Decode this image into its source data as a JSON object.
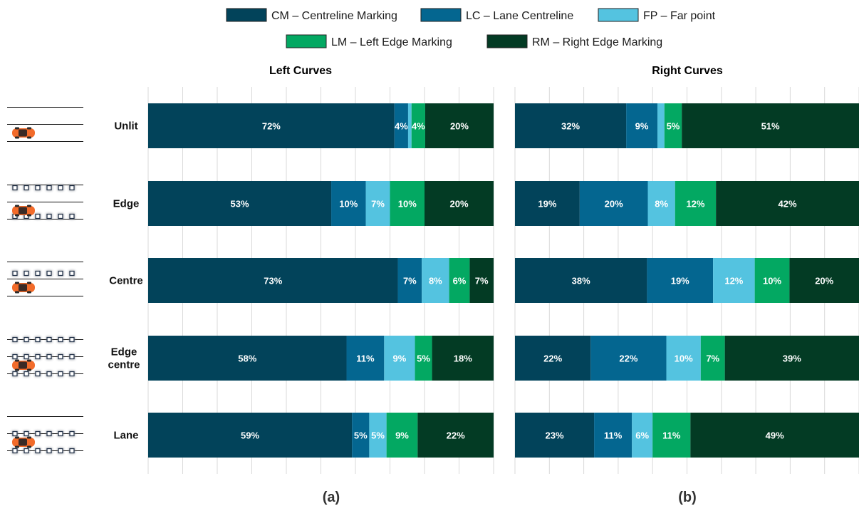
{
  "legend": [
    {
      "key": "CM",
      "label": "CM – Centreline Marking",
      "color": "#02435a"
    },
    {
      "key": "LC",
      "label": "LC – Lane Centreline",
      "color": "#046690"
    },
    {
      "key": "FP",
      "label": "FP – Far point",
      "color": "#54c3e0"
    },
    {
      "key": "LM",
      "label": "LM – Left Edge Marking",
      "color": "#03a862"
    },
    {
      "key": "RM",
      "label": "RM – Right Edge Marking",
      "color": "#033b24"
    }
  ],
  "categories": [
    "Unlit",
    "Edge",
    "Centre",
    "Edge centre",
    "Lane"
  ],
  "chart_data": [
    {
      "type": "bar",
      "orientation": "horizontal",
      "stacked": true,
      "normalized": true,
      "title": "Left Curves",
      "panel_label": "(a)",
      "categories": [
        "Unlit",
        "Edge",
        "Centre",
        "Edge centre",
        "Lane"
      ],
      "series": [
        {
          "name": "CM – Centreline Marking",
          "values": [
            72,
            53,
            73,
            58,
            59
          ],
          "labels": [
            "72%",
            "53%",
            "73%",
            "58%",
            "59%"
          ]
        },
        {
          "name": "LC – Lane Centreline",
          "values": [
            4,
            10,
            7,
            11,
            5
          ],
          "labels": [
            "4%",
            "10%",
            "7%",
            "11%",
            "5%"
          ]
        },
        {
          "name": "FP – Far point",
          "values": [
            1,
            7,
            8,
            9,
            5
          ],
          "labels": [
            "",
            "7%",
            "8%",
            "9%",
            "5%"
          ]
        },
        {
          "name": "LM – Left Edge Marking",
          "values": [
            4,
            10,
            6,
            5,
            9
          ],
          "labels": [
            "4%",
            "10%",
            "6%",
            "5%",
            "9%"
          ]
        },
        {
          "name": "RM – Right Edge Marking",
          "values": [
            20,
            20,
            7,
            18,
            22
          ],
          "labels": [
            "20%",
            "20%",
            "7%",
            "18%",
            "22%"
          ]
        }
      ],
      "grid": true,
      "gridlines": 10
    },
    {
      "type": "bar",
      "orientation": "horizontal",
      "stacked": true,
      "normalized": true,
      "title": "Right Curves",
      "panel_label": "(b)",
      "categories": [
        "Unlit",
        "Edge",
        "Centre",
        "Edge centre",
        "Lane"
      ],
      "series": [
        {
          "name": "CM – Centreline Marking",
          "values": [
            32,
            19,
            38,
            22,
            23
          ],
          "labels": [
            "32%",
            "19%",
            "38%",
            "22%",
            "23%"
          ]
        },
        {
          "name": "LC – Lane Centreline",
          "values": [
            9,
            20,
            19,
            22,
            11
          ],
          "labels": [
            "9%",
            "20%",
            "19%",
            "22%",
            "11%"
          ]
        },
        {
          "name": "FP – Far point",
          "values": [
            2,
            8,
            12,
            10,
            6
          ],
          "labels": [
            "",
            "8%",
            "12%",
            "10%",
            "6%"
          ]
        },
        {
          "name": "LM – Left Edge Marking",
          "values": [
            5,
            12,
            10,
            7,
            11
          ],
          "labels": [
            "5%",
            "12%",
            "10%",
            "7%",
            "11%"
          ]
        },
        {
          "name": "RM – Right Edge Marking",
          "values": [
            51,
            42,
            20,
            39,
            49
          ],
          "labels": [
            "51%",
            "42%",
            "20%",
            "39%",
            "49%"
          ]
        }
      ],
      "grid": true,
      "gridlines": 10
    }
  ],
  "icons": [
    {
      "row": "Unlit",
      "icon": "road-unlit-icon"
    },
    {
      "row": "Edge",
      "icon": "road-edge-lighting-icon"
    },
    {
      "row": "Centre",
      "icon": "road-centre-lighting-icon"
    },
    {
      "row": "Edge centre",
      "icon": "road-edge-centre-lighting-icon"
    },
    {
      "row": "Lane",
      "icon": "road-lane-lighting-icon"
    }
  ],
  "colors": {
    "text": "#1a1a1a",
    "grid": "#d9d9d9",
    "car": "#f26b2a",
    "lamp": "#22324a"
  }
}
